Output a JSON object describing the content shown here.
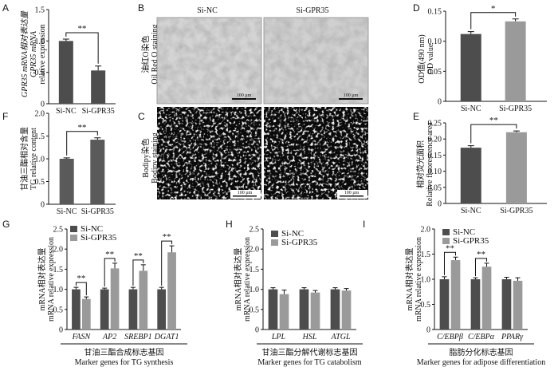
{
  "colors": {
    "dark": "#4d4d4d",
    "light": "#9a9a9a",
    "bar": "#5a5a5a"
  },
  "panel_letters": [
    "A",
    "B",
    "C",
    "D",
    "E",
    "F",
    "G",
    "H",
    "I"
  ],
  "images": {
    "col_titles": [
      "Si-NC",
      "Si-GPR35"
    ],
    "row_labels_cn": [
      "油红O染色",
      "Bodipy染色"
    ],
    "row_labels_en": [
      "Oil Red O staining",
      "Bodipy staining"
    ],
    "scale_bar": "100 µm"
  },
  "chart_data": [
    {
      "panel": "A",
      "type": "bar",
      "categories": [
        "Si-NC",
        "Si-GPR35"
      ],
      "values": [
        1.0,
        0.53
      ],
      "errors": [
        0.03,
        0.07
      ],
      "ylim": [
        0,
        1.5
      ],
      "yticks": [
        "0",
        "0.5",
        "1.0",
        "1.5"
      ],
      "ylabel": [
        "GPR35 mRNA相对表达量",
        "GPR35 mRNA",
        "relative expression"
      ],
      "significance": "**"
    },
    {
      "panel": "D",
      "type": "bar",
      "categories": [
        "Si-NC",
        "Si-GPR35"
      ],
      "values": [
        0.112,
        0.133
      ],
      "errors": [
        0.004,
        0.004
      ],
      "ylim": [
        0,
        0.15
      ],
      "yticks": [
        "0",
        "0.05",
        "0.10",
        "0.15"
      ],
      "ylabel": [
        "OD值(490 nm)",
        "OD value"
      ],
      "significance": "*"
    },
    {
      "panel": "F",
      "type": "bar",
      "categories": [
        "Si-NC",
        "Si-GPR35"
      ],
      "values": [
        1.0,
        1.42
      ],
      "errors": [
        0.02,
        0.04
      ],
      "ylim": [
        0,
        2.0
      ],
      "yticks": [
        "0",
        "0.5",
        "1.0",
        "1.5",
        "2.0"
      ],
      "ylabel": [
        "甘油三酯相对含量",
        "TG relative content"
      ],
      "significance": "**"
    },
    {
      "panel": "E",
      "type": "bar",
      "categories": [
        "Si-NC",
        "Si-GPR35"
      ],
      "values": [
        0.173,
        0.221
      ],
      "errors": [
        0.006,
        0.004
      ],
      "ylim": [
        0,
        0.25
      ],
      "yticks": [
        "0",
        "0.05",
        "0.10",
        "0.15",
        "0.20",
        "0.25"
      ],
      "ylabel": [
        "相对荧光面积",
        "Relative fluorescence area"
      ],
      "significance": "**"
    },
    {
      "panel": "G",
      "type": "bar",
      "categories": [
        "FASN",
        "AP2",
        "SREBP1",
        "DGAT1"
      ],
      "series": [
        {
          "name": "Si-NC",
          "values": [
            1.0,
            1.0,
            1.0,
            1.0
          ],
          "errors": [
            0.05,
            0.03,
            0.05,
            0.05
          ]
        },
        {
          "name": "Si-GPR35",
          "values": [
            0.76,
            1.52,
            1.46,
            1.92
          ],
          "errors": [
            0.05,
            0.13,
            0.15,
            0.16
          ]
        }
      ],
      "ylim": [
        0,
        2.5
      ],
      "yticks": [
        "0",
        "0.5",
        "1.0",
        "1.5",
        "2.0",
        "2.5"
      ],
      "ylabel": [
        "mRNA相对表达量",
        "mRNA relative expression"
      ],
      "xlabel": [
        "甘油三酯合成标志基因",
        "Marker genes for TG synthesis"
      ],
      "significance": [
        "**",
        "**",
        "**",
        "**"
      ]
    },
    {
      "panel": "H",
      "type": "bar",
      "categories": [
        "LPL",
        "HSL",
        "ATGL"
      ],
      "series": [
        {
          "name": "Si-NC",
          "values": [
            1.0,
            1.0,
            1.0
          ],
          "errors": [
            0.04,
            0.04,
            0.04
          ]
        },
        {
          "name": "Si-GPR35",
          "values": [
            0.88,
            0.92,
            0.97
          ],
          "errors": [
            0.1,
            0.05,
            0.05
          ]
        }
      ],
      "ylim": [
        0,
        2.5
      ],
      "yticks": [
        "0",
        "0.5",
        "1.0",
        "1.5",
        "2.0",
        "2.5"
      ],
      "ylabel": [
        "mRNA相对表达量",
        "mRNA relative expression"
      ],
      "xlabel": [
        "甘油三酯分解代谢标志基因",
        "Marker genes for TG catabolism"
      ],
      "significance": [
        "",
        "",
        ""
      ]
    },
    {
      "panel": "I",
      "type": "bar",
      "categories": [
        "C/EBPβ",
        "C/EBPα",
        "PPARγ"
      ],
      "series": [
        {
          "name": "Si-NC",
          "values": [
            1.0,
            1.0,
            1.0
          ],
          "errors": [
            0.05,
            0.03,
            0.04
          ]
        },
        {
          "name": "Si-GPR35",
          "values": [
            1.38,
            1.25,
            0.97
          ],
          "errors": [
            0.06,
            0.07,
            0.06
          ]
        }
      ],
      "ylim": [
        0,
        2.0
      ],
      "yticks": [
        "0",
        "0.5",
        "1.0",
        "1.5",
        "2.0"
      ],
      "ylabel": [
        "mRNA相对表达量",
        "mRNA relative expression"
      ],
      "xlabel": [
        "脂肪分化标志基因",
        "Marker genes for adipose differentiation"
      ],
      "significance": [
        "**",
        "**",
        ""
      ]
    }
  ]
}
